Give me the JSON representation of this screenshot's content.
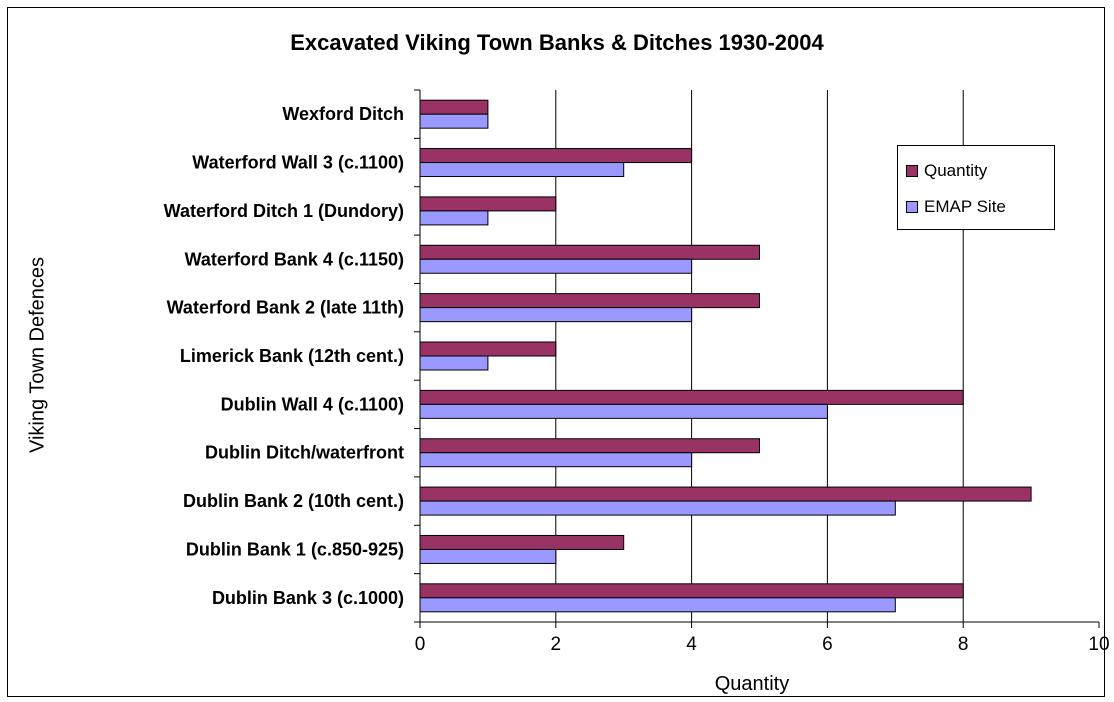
{
  "chart_data": {
    "type": "bar",
    "orientation": "horizontal",
    "title": "Excavated Viking Town Banks & Ditches 1930-2004",
    "xlabel": "Quantity",
    "ylabel": "Viking Town Defences",
    "xlim": [
      0,
      10
    ],
    "xticks": [
      "0",
      "2",
      "4",
      "6",
      "8",
      "10"
    ],
    "grid": "vertical",
    "legend_position": "right",
    "categories": [
      "Wexford Ditch",
      "Waterford Wall 3 (c.1100)",
      "Waterford Ditch 1 (Dundory)",
      "Waterford Bank 4 (c.1150)",
      "Waterford Bank 2 (late 11th)",
      "Limerick Bank (12th cent.)",
      "Dublin Wall 4 (c.1100)",
      "Dublin Ditch/waterfront",
      "Dublin Bank 2 (10th cent.)",
      "Dublin Bank 1 (c.850-925)",
      "Dublin Bank  3 (c.1000)"
    ],
    "series": [
      {
        "name": "Quantity",
        "color": "#993366",
        "values": [
          1,
          4,
          2,
          5,
          5,
          2,
          8,
          5,
          9,
          3,
          8
        ]
      },
      {
        "name": "EMAP Site",
        "color": "#9999FF",
        "values": [
          1,
          3,
          1,
          4,
          4,
          1,
          6,
          4,
          7,
          2,
          7
        ]
      }
    ]
  }
}
